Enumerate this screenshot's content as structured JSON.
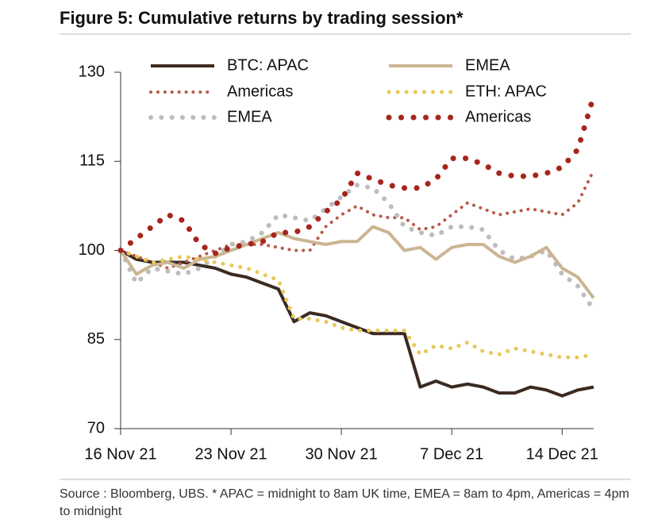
{
  "chart_data": {
    "type": "line",
    "title": "Figure 5: Cumulative returns by trading session*",
    "footnote": "Source : Bloomberg, UBS. * APAC = midnight to 8am UK time, EMEA = 8am to 4pm, Americas = 4pm to midnight",
    "start": "2021-11-16",
    "x": [
      "2021-11-16",
      "2021-11-17",
      "2021-11-18",
      "2021-11-19",
      "2021-11-20",
      "2021-11-21",
      "2021-11-22",
      "2021-11-23",
      "2021-11-24",
      "2021-11-25",
      "2021-11-26",
      "2021-11-27",
      "2021-11-28",
      "2021-11-29",
      "2021-11-30",
      "2021-12-01",
      "2021-12-02",
      "2021-12-03",
      "2021-12-04",
      "2021-12-05",
      "2021-12-06",
      "2021-12-07",
      "2021-12-08",
      "2021-12-09",
      "2021-12-10",
      "2021-12-11",
      "2021-12-12",
      "2021-12-13",
      "2021-12-14",
      "2021-12-15",
      "2021-12-16"
    ],
    "xlim": [
      "2021-11-16",
      "2021-12-16"
    ],
    "xticks": [
      {
        "value": "2021-11-16",
        "label": "16 Nov 21"
      },
      {
        "value": "2021-11-23",
        "label": "23 Nov 21"
      },
      {
        "value": "2021-11-30",
        "label": "30 Nov 21"
      },
      {
        "value": "2021-12-07",
        "label": "7 Dec 21"
      },
      {
        "value": "2021-12-14",
        "label": "14 Dec 21"
      }
    ],
    "ylim": [
      70,
      130
    ],
    "yticks": [
      70,
      85,
      100,
      115,
      130
    ],
    "series": [
      {
        "name": "BTC: APAC",
        "color": "#3b2a20",
        "line_style": "solid",
        "line_width": 4,
        "values": [
          100,
          98.5,
          98,
          98,
          98,
          97.5,
          97,
          96,
          95.5,
          94.5,
          93.5,
          88,
          89.5,
          89,
          88,
          87,
          86,
          86,
          86,
          77,
          78,
          77,
          77.5,
          77,
          76,
          76,
          77,
          76.5,
          75.5,
          76.5,
          77
        ]
      },
      {
        "name": "Americas",
        "color": "#b85a4a",
        "line_style": "dotted",
        "line_width": 4,
        "values": [
          100,
          99,
          98,
          97,
          98,
          99,
          100,
          101,
          101,
          101,
          100.5,
          100,
          100,
          104,
          106,
          107.5,
          106,
          105.5,
          105.5,
          103.5,
          104,
          106,
          108,
          107,
          106,
          106.5,
          107,
          106.5,
          106,
          108,
          113.5
        ]
      },
      {
        "name": "EMEA",
        "color": "#bdbdbd",
        "line_style": "dotted",
        "line_width": 6,
        "values": [
          100,
          94.5,
          97,
          96.5,
          96,
          97,
          99,
          101,
          101.5,
          103,
          106,
          105.5,
          105,
          107,
          109,
          111,
          110.5,
          108,
          104,
          103,
          102.5,
          104,
          104,
          103.5,
          100,
          98.5,
          99,
          100,
          96,
          94,
          90
        ]
      },
      {
        "name": "EMEA",
        "color": "#cbb592",
        "line_style": "solid",
        "line_width": 4,
        "values": [
          100,
          96,
          97.5,
          98,
          97,
          98.5,
          99,
          100,
          101,
          102,
          103,
          102,
          101.5,
          101,
          101.5,
          101.5,
          104,
          103,
          100,
          100.5,
          98.5,
          100.5,
          101,
          101,
          99,
          98,
          99,
          100.5,
          97,
          95.5,
          92
        ]
      },
      {
        "name": "ETH: APAC",
        "color": "#e8c85a",
        "line_style": "dotted",
        "line_width": 5,
        "values": [
          100,
          99,
          98,
          98.5,
          99,
          98.5,
          98,
          97.5,
          97,
          96,
          95,
          88.5,
          88.5,
          88,
          87,
          86.5,
          86.5,
          86.5,
          86.5,
          82.5,
          84,
          83.5,
          84.5,
          83,
          82.5,
          83.5,
          83,
          82.5,
          82,
          82,
          82.5
        ]
      },
      {
        "name": "Americas",
        "color": "#a6261c",
        "line_style": "dotted",
        "line_width": 7,
        "values": [
          100,
          102,
          104,
          106,
          105,
          101,
          99.5,
          100.5,
          101,
          101.5,
          103,
          103,
          104,
          106.5,
          108.5,
          113,
          112,
          111,
          110.5,
          110.5,
          112,
          115.5,
          115.5,
          114.5,
          113,
          112.5,
          112.5,
          113,
          114,
          117,
          126
        ]
      }
    ]
  }
}
